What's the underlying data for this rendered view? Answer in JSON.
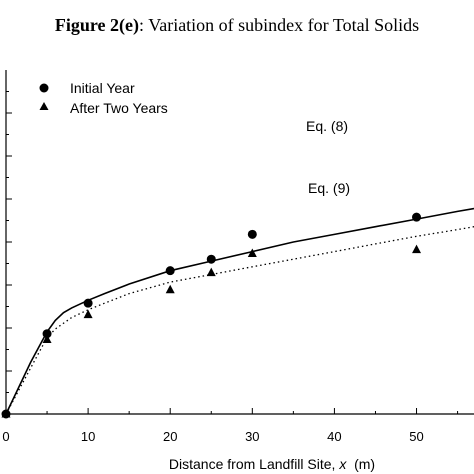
{
  "figure": {
    "label": "Figure 2(e)",
    "caption": ": Variation of subindex for Total Solids"
  },
  "chart_data": {
    "type": "scatter",
    "title": "Figure 2(e): Variation of subindex for Total Solids",
    "xlabel_prefix": "Distance from Landfill Site, ",
    "xlabel_var": "x",
    "xlabel_unit": "  (m)",
    "ylabel": "",
    "xlim": [
      0,
      57
    ],
    "ylim": [
      0,
      1.8
    ],
    "x_ticks": [
      0,
      10,
      20,
      30,
      40,
      50
    ],
    "y_tick_count": 8,
    "grid": false,
    "legend_position": "top-left",
    "series": [
      {
        "name": "Initial Year",
        "marker": "circle",
        "points": [
          [
            0,
            0.0
          ],
          [
            5,
            0.42
          ],
          [
            10,
            0.58
          ],
          [
            20,
            0.75
          ],
          [
            25,
            0.81
          ],
          [
            30,
            0.94
          ],
          [
            50,
            1.03
          ]
        ]
      },
      {
        "name": "After Two Years",
        "marker": "triangle",
        "points": [
          [
            0,
            0.0
          ],
          [
            5,
            0.39
          ],
          [
            10,
            0.52
          ],
          [
            20,
            0.65
          ],
          [
            25,
            0.74
          ],
          [
            30,
            0.84
          ],
          [
            50,
            0.86
          ]
        ]
      }
    ],
    "curves": [
      {
        "label": "Eq. (8)",
        "style": "solid",
        "points": [
          [
            0,
            0.0
          ],
          [
            1,
            0.09
          ],
          [
            2,
            0.18
          ],
          [
            3,
            0.27
          ],
          [
            4,
            0.35
          ],
          [
            5,
            0.43
          ],
          [
            6,
            0.49
          ],
          [
            7,
            0.53
          ],
          [
            8,
            0.555
          ],
          [
            10,
            0.595
          ],
          [
            12,
            0.63
          ],
          [
            15,
            0.68
          ],
          [
            20,
            0.75
          ],
          [
            25,
            0.8
          ],
          [
            30,
            0.85
          ],
          [
            35,
            0.9
          ],
          [
            40,
            0.94
          ],
          [
            45,
            0.98
          ],
          [
            50,
            1.02
          ],
          [
            55,
            1.06
          ],
          [
            57,
            1.075
          ]
        ]
      },
      {
        "label": "Eq. (9)",
        "style": "dotted",
        "points": [
          [
            0,
            0.0
          ],
          [
            1,
            0.08
          ],
          [
            2,
            0.16
          ],
          [
            3,
            0.24
          ],
          [
            4,
            0.32
          ],
          [
            5,
            0.4
          ],
          [
            6,
            0.445
          ],
          [
            8,
            0.505
          ],
          [
            10,
            0.545
          ],
          [
            12,
            0.58
          ],
          [
            15,
            0.63
          ],
          [
            20,
            0.69
          ],
          [
            25,
            0.73
          ],
          [
            30,
            0.77
          ],
          [
            35,
            0.81
          ],
          [
            40,
            0.85
          ],
          [
            45,
            0.89
          ],
          [
            50,
            0.93
          ],
          [
            55,
            0.965
          ],
          [
            57,
            0.98
          ]
        ]
      }
    ]
  }
}
